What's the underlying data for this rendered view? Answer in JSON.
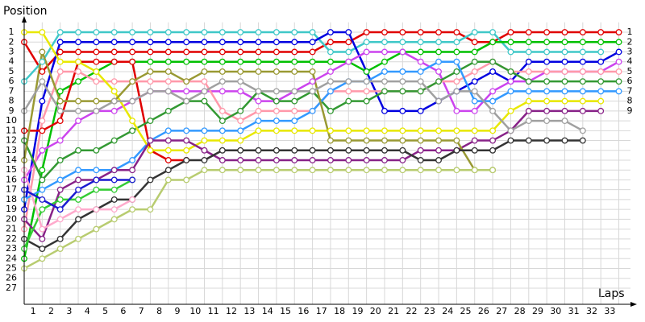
{
  "chart_data": {
    "type": "line",
    "y_label": "Position",
    "x_label": "Laps",
    "x": [
      0,
      1,
      2,
      3,
      4,
      5,
      6,
      7,
      8,
      9,
      10,
      11,
      12,
      13,
      14,
      15,
      16,
      17,
      18,
      19,
      20,
      21,
      22,
      23,
      24,
      25,
      26,
      27,
      28,
      29,
      30,
      31,
      32,
      33
    ],
    "xlim": [
      0,
      33.5
    ],
    "xticks": [
      1,
      2,
      3,
      4,
      5,
      6,
      7,
      8,
      9,
      10,
      11,
      12,
      13,
      14,
      15,
      16,
      17,
      18,
      19,
      20,
      21,
      22,
      23,
      24,
      25,
      26,
      27,
      28,
      29,
      30,
      31,
      32,
      33
    ],
    "ylim": [
      28,
      0
    ],
    "yticks": [
      1,
      2,
      3,
      4,
      5,
      6,
      7,
      8,
      9,
      10,
      11,
      12,
      13,
      14,
      15,
      16,
      17,
      18,
      19,
      20,
      21,
      22,
      23,
      24,
      25,
      26,
      27
    ],
    "y2lim": [
      28,
      0
    ],
    "y2ticks": [
      1,
      2,
      3,
      4,
      5,
      6,
      7,
      8,
      9
    ],
    "grid": true,
    "series": [
      {
        "color": "#e00000",
        "values": [
          2,
          5,
          3,
          3,
          3,
          3,
          3,
          3,
          3,
          3,
          3,
          3,
          3,
          3,
          3,
          3,
          3,
          2,
          2,
          1,
          1,
          1,
          1,
          1,
          1,
          2,
          2,
          1,
          1,
          1,
          1,
          1,
          1,
          1
        ]
      },
      {
        "color": "#40c8c8",
        "values": [
          6,
          4,
          1,
          1,
          1,
          1,
          1,
          1,
          1,
          1,
          1,
          1,
          1,
          1,
          1,
          1,
          1,
          3,
          3,
          2,
          2,
          2,
          2,
          2,
          2,
          1,
          1,
          3,
          3,
          3,
          3,
          3,
          3,
          null
        ]
      },
      {
        "color": "#0000e0",
        "values": [
          19,
          8,
          2,
          2,
          2,
          2,
          2,
          2,
          2,
          2,
          2,
          2,
          2,
          2,
          2,
          2,
          2,
          1,
          1,
          5,
          9,
          9,
          9,
          8,
          7,
          6,
          5,
          6,
          4,
          4,
          4,
          4,
          4,
          3
        ]
      },
      {
        "color": "#00c000",
        "values": [
          24,
          15,
          7,
          6,
          5,
          4,
          4,
          4,
          4,
          4,
          4,
          4,
          4,
          4,
          4,
          4,
          4,
          4,
          4,
          5,
          4,
          3,
          3,
          3,
          3,
          3,
          2,
          2,
          2,
          2,
          2,
          2,
          2,
          2
        ]
      },
      {
        "color": "#e00000",
        "values": [
          11,
          11,
          10,
          4,
          4,
          4,
          4,
          13,
          14,
          14,
          null,
          null,
          null,
          null,
          null,
          null,
          null,
          null,
          null,
          null,
          null,
          null,
          null,
          null,
          null,
          null,
          null,
          null,
          null,
          null,
          null,
          null,
          null,
          null
        ]
      },
      {
        "color": "#cc44ee",
        "values": [
          16,
          13,
          12,
          10,
          9,
          9,
          8,
          7,
          7,
          7,
          7,
          7,
          7,
          8,
          8,
          7,
          6,
          5,
          4,
          3,
          3,
          3,
          4,
          5,
          9,
          9,
          7,
          6,
          6,
          5,
          5,
          5,
          5,
          4
        ]
      },
      {
        "color": "#ff99aa",
        "values": [
          21,
          10,
          5,
          5,
          6,
          6,
          6,
          6,
          6,
          6,
          6,
          9,
          10,
          9,
          9,
          9,
          9,
          7,
          7,
          7,
          7,
          7,
          7,
          6,
          6,
          5,
          4,
          5,
          5,
          5,
          5,
          5,
          5,
          5
        ]
      },
      {
        "color": "#339933",
        "values": [
          12,
          16,
          14,
          13,
          13,
          12,
          11,
          10,
          9,
          8,
          8,
          10,
          9,
          7,
          8,
          8,
          7,
          9,
          8,
          8,
          7,
          7,
          7,
          6,
          5,
          4,
          4,
          5,
          6,
          6,
          6,
          6,
          6,
          6
        ]
      },
      {
        "color": "#3399ff",
        "values": [
          18,
          17,
          16,
          15,
          15,
          15,
          14,
          12,
          11,
          11,
          11,
          11,
          11,
          10,
          10,
          10,
          9,
          7,
          6,
          6,
          5,
          5,
          5,
          4,
          4,
          8,
          8,
          7,
          7,
          7,
          7,
          7,
          7,
          7
        ]
      },
      {
        "color": "#e8e800",
        "values": [
          1,
          1,
          4,
          4,
          5,
          7,
          10,
          13,
          13,
          13,
          12,
          12,
          12,
          11,
          11,
          11,
          11,
          11,
          11,
          11,
          11,
          11,
          11,
          11,
          11,
          11,
          11,
          9,
          8,
          8,
          8,
          8,
          8,
          null
        ]
      },
      {
        "color": "#882288",
        "values": [
          20,
          22,
          17,
          16,
          16,
          15,
          15,
          12,
          12,
          12,
          13,
          14,
          14,
          14,
          14,
          14,
          14,
          14,
          14,
          14,
          14,
          14,
          13,
          13,
          13,
          12,
          12,
          11,
          9,
          9,
          9,
          9,
          9,
          null
        ]
      },
      {
        "color": "#999933",
        "values": [
          14,
          3,
          8,
          8,
          8,
          8,
          6,
          5,
          5,
          6,
          5,
          5,
          5,
          5,
          5,
          5,
          5,
          12,
          12,
          12,
          12,
          12,
          12,
          12,
          12,
          15,
          15,
          null,
          null,
          null,
          null,
          null,
          null,
          null
        ]
      },
      {
        "color": "#a0a0a0",
        "values": [
          9,
          6,
          9,
          9,
          9,
          8,
          8,
          7,
          7,
          8,
          7,
          6,
          6,
          7,
          7,
          7,
          7,
          6,
          6,
          6,
          6,
          6,
          6,
          8,
          7,
          7,
          9,
          11,
          10,
          10,
          10,
          11,
          null,
          null
        ]
      },
      {
        "color": "#333333",
        "values": [
          22,
          23,
          22,
          20,
          19,
          18,
          18,
          16,
          15,
          14,
          14,
          13,
          13,
          13,
          13,
          13,
          13,
          13,
          13,
          13,
          13,
          13,
          14,
          14,
          13,
          13,
          13,
          12,
          12,
          12,
          12,
          12,
          null,
          null
        ]
      },
      {
        "color": "#b8cc70",
        "values": [
          25,
          24,
          23,
          22,
          21,
          20,
          19,
          19,
          16,
          16,
          15,
          15,
          15,
          15,
          15,
          15,
          15,
          15,
          15,
          15,
          15,
          15,
          15,
          15,
          15,
          15,
          15,
          null,
          null,
          null,
          null,
          null,
          null,
          null
        ]
      },
      {
        "color": "#33cc33",
        "values": [
          23,
          19,
          18,
          18,
          17,
          17,
          16,
          null,
          null,
          null,
          null,
          null,
          null,
          null,
          null,
          null,
          null,
          null,
          null,
          null,
          null,
          null,
          null,
          null,
          null,
          null,
          null,
          null,
          null,
          null,
          null,
          null,
          null,
          null
        ]
      },
      {
        "color": "#ffaacc",
        "values": [
          15,
          21,
          20,
          19,
          19,
          19,
          18,
          null,
          null,
          null,
          null,
          null,
          null,
          null,
          null,
          null,
          null,
          null,
          null,
          null,
          null,
          null,
          null,
          null,
          null,
          null,
          null,
          null,
          null,
          null,
          null,
          null,
          null,
          null
        ]
      },
      {
        "color": "#1a1ad0",
        "values": [
          17,
          18,
          19,
          17,
          16,
          16,
          16,
          null,
          null,
          null,
          null,
          null,
          null,
          null,
          null,
          null,
          null,
          null,
          null,
          null,
          null,
          null,
          null,
          null,
          null,
          null,
          null,
          null,
          null,
          null,
          null,
          null,
          null,
          null
        ]
      }
    ]
  }
}
